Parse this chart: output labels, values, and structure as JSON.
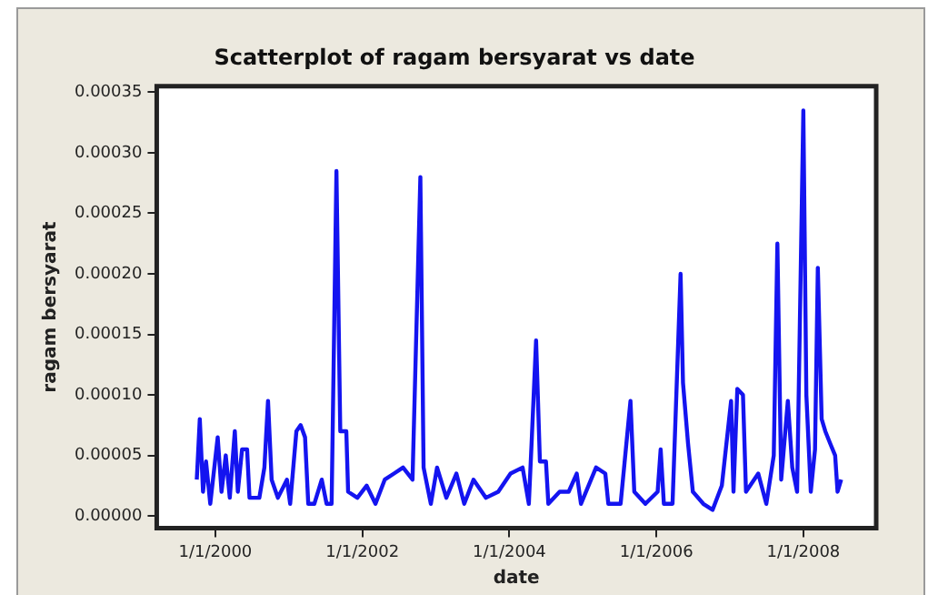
{
  "chart_data": {
    "type": "line",
    "title": "Scatterplot of ragam bersyarat vs date",
    "xlabel": "date",
    "ylabel": "ragam bersyarat",
    "marker": "none",
    "line_style": "solid",
    "grid": false,
    "legend": false,
    "xlim": [
      "1999-03-16",
      "2008-12-28"
    ],
    "xticks": [
      {
        "value": "2000-01-01",
        "label": "1/1/2000"
      },
      {
        "value": "2002-01-01",
        "label": "1/1/2002"
      },
      {
        "value": "2004-01-01",
        "label": "1/1/2004"
      },
      {
        "value": "2006-01-01",
        "label": "1/1/2006"
      },
      {
        "value": "2008-01-01",
        "label": "1/1/2008"
      }
    ],
    "ylim": [
      -1e-05,
      0.000355
    ],
    "yticks": [
      {
        "value": 0,
        "label": "0.00000"
      },
      {
        "value": 5e-05,
        "label": "0.00005"
      },
      {
        "value": 0.0001,
        "label": "0.00010"
      },
      {
        "value": 0.00015,
        "label": "0.00015"
      },
      {
        "value": 0.0002,
        "label": "0.00020"
      },
      {
        "value": 0.00025,
        "label": "0.00025"
      },
      {
        "value": 0.0003,
        "label": "0.00030"
      },
      {
        "value": 0.00035,
        "label": "0.00035"
      }
    ],
    "x": [
      "1999-10-01",
      "1999-10-16",
      "1999-11-01",
      "1999-11-16",
      "1999-12-07",
      "2000-01-13",
      "2000-02-01",
      "2000-02-22",
      "2000-03-13",
      "2000-04-07",
      "2000-04-22",
      "2000-05-13",
      "2000-06-07",
      "2000-06-19",
      "2000-08-07",
      "2000-09-01",
      "2000-09-19",
      "2000-10-07",
      "2000-11-07",
      "2000-12-22",
      "2001-01-07",
      "2001-02-07",
      "2001-02-28",
      "2001-03-22",
      "2001-04-07",
      "2001-05-07",
      "2001-06-13",
      "2001-07-07",
      "2001-08-01",
      "2001-08-25",
      "2001-09-13",
      "2001-10-13",
      "2001-10-22",
      "2001-12-07",
      "2002-01-22",
      "2002-03-07",
      "2002-04-22",
      "2002-06-07",
      "2002-07-22",
      "2002-09-07",
      "2002-10-16",
      "2002-11-01",
      "2002-12-07",
      "2003-01-07",
      "2003-02-22",
      "2003-04-13",
      "2003-05-22",
      "2003-07-07",
      "2003-09-07",
      "2003-11-07",
      "2004-01-07",
      "2004-03-07",
      "2004-04-07",
      "2004-04-22",
      "2004-05-13",
      "2004-06-01",
      "2004-07-01",
      "2004-07-13",
      "2004-09-07",
      "2004-10-22",
      "2004-12-01",
      "2004-12-22",
      "2005-03-07",
      "2005-04-22",
      "2005-05-07",
      "2005-07-07",
      "2005-08-25",
      "2005-09-13",
      "2005-11-07",
      "2006-01-07",
      "2006-01-22",
      "2006-02-07",
      "2006-03-22",
      "2006-05-01",
      "2006-05-13",
      "2006-06-07",
      "2006-07-01",
      "2006-08-22",
      "2006-10-07",
      "2006-11-22",
      "2007-01-07",
      "2007-01-19",
      "2007-02-07",
      "2007-03-07",
      "2007-03-22",
      "2007-05-22",
      "2007-07-01",
      "2007-08-07",
      "2007-08-25",
      "2007-09-13",
      "2007-10-16",
      "2007-11-07",
      "2007-12-01",
      "2008-01-01",
      "2008-01-16",
      "2008-02-07",
      "2008-02-28",
      "2008-03-13",
      "2008-04-01",
      "2008-04-19",
      "2008-05-13",
      "2008-06-07",
      "2008-06-19",
      "2008-07-07"
    ],
    "series": [
      {
        "color": "#1414f0",
        "values": [
          3e-05,
          8e-05,
          2e-05,
          4.5e-05,
          1e-05,
          6.5e-05,
          2e-05,
          5e-05,
          1.5e-05,
          7e-05,
          2e-05,
          5.5e-05,
          5.5e-05,
          1.5e-05,
          1.5e-05,
          4e-05,
          9.5e-05,
          3e-05,
          1.5e-05,
          3e-05,
          1e-05,
          7e-05,
          7.5e-05,
          6.5e-05,
          1e-05,
          1e-05,
          3e-05,
          1e-05,
          1e-05,
          0.000285,
          7e-05,
          7e-05,
          2e-05,
          1.5e-05,
          2.5e-05,
          1e-05,
          3e-05,
          3.5e-05,
          4e-05,
          3e-05,
          0.00028,
          4e-05,
          1e-05,
          4e-05,
          1.5e-05,
          3.5e-05,
          1e-05,
          3e-05,
          1.5e-05,
          2e-05,
          3.5e-05,
          4e-05,
          1e-05,
          6.5e-05,
          0.000145,
          4.5e-05,
          4.5e-05,
          1e-05,
          2e-05,
          2e-05,
          3.5e-05,
          1e-05,
          4e-05,
          3.5e-05,
          1e-05,
          1e-05,
          9.5e-05,
          2e-05,
          1e-05,
          2e-05,
          5.5e-05,
          1e-05,
          1e-05,
          0.0002,
          0.00011,
          6e-05,
          2e-05,
          1e-05,
          5e-06,
          2.5e-05,
          9.5e-05,
          2e-05,
          0.000105,
          0.0001,
          2e-05,
          3.5e-05,
          1e-05,
          5e-05,
          0.000225,
          3e-05,
          9.5e-05,
          4e-05,
          2e-05,
          0.000335,
          0.0001,
          2e-05,
          5.5e-05,
          0.000205,
          8e-05,
          7e-05,
          6e-05,
          5e-05,
          2e-05,
          3e-05
        ]
      }
    ]
  }
}
